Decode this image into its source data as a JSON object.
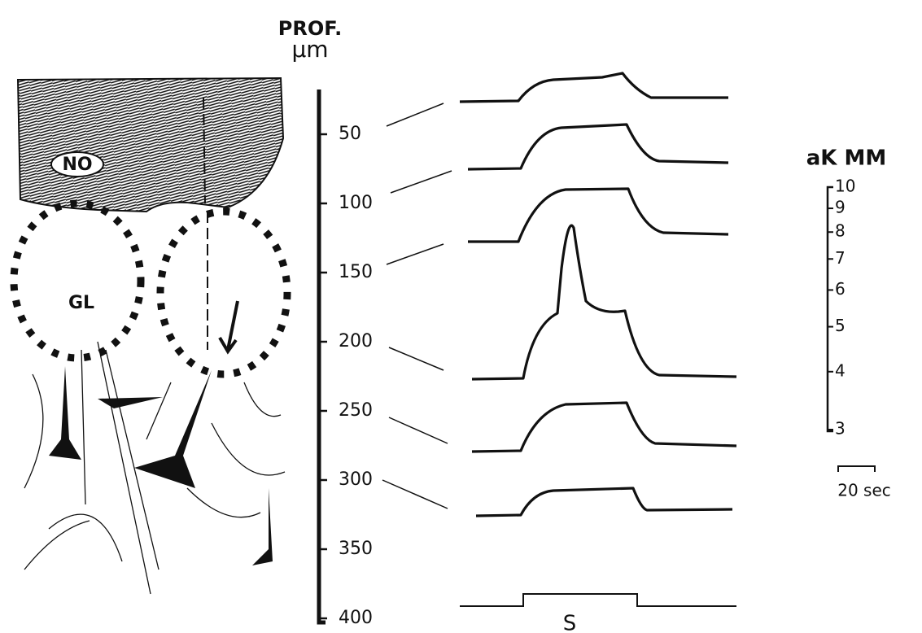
{
  "depth_axis": {
    "title": "PROF.",
    "unit": "µm",
    "ticks": [
      50,
      100,
      150,
      200,
      250,
      300,
      350,
      400
    ]
  },
  "labels": {
    "no": "NO",
    "gl": "GL"
  },
  "ak_scale": {
    "title": "aK MM",
    "ticks": [
      10,
      9,
      8,
      7,
      6,
      5,
      4,
      3
    ]
  },
  "time_bar": {
    "label": "20 sec"
  },
  "stimulus": {
    "label": "S"
  }
}
